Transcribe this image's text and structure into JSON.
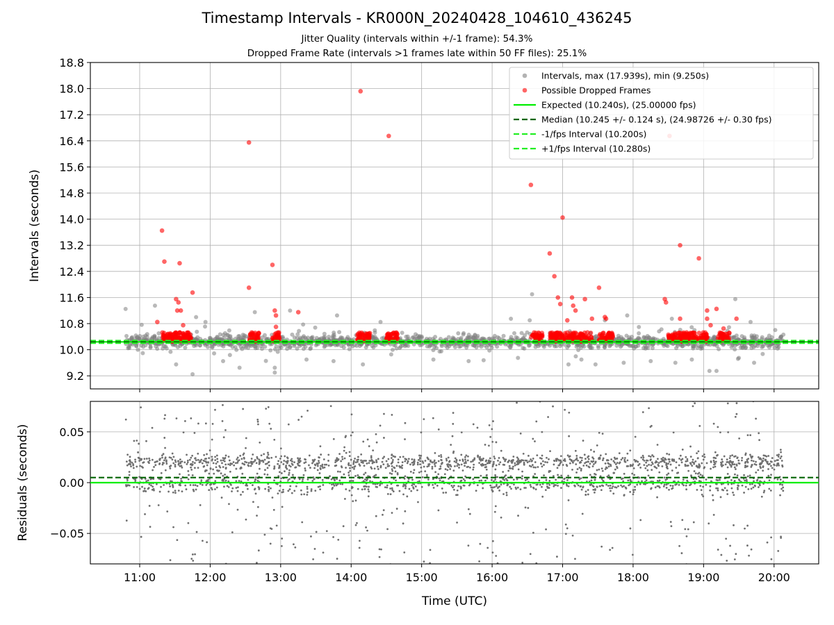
{
  "chart_data": [
    {
      "type": "scatter",
      "title": "Timestamp Intervals - KR000N_20240428_104610_436245",
      "subtitle_lines": [
        "Jitter Quality (intervals within +/-1 frame): 54.3%",
        "Dropped Frame Rate (intervals >1 frames late within 50 FF files): 25.1%"
      ],
      "xlabel": "",
      "ylabel": "Intervals (seconds)",
      "xlim": [
        "10:18",
        "20:38"
      ],
      "ylim": [
        8.8,
        18.8
      ],
      "yticks": [
        9.2,
        10.0,
        10.8,
        11.6,
        12.4,
        13.2,
        14.0,
        14.8,
        15.6,
        16.4,
        17.2,
        18.0,
        18.8
      ],
      "yticks_labels": [
        "9.2",
        "10.0",
        "10.8",
        "11.6",
        "12.4",
        "13.2",
        "14.0",
        "14.8",
        "15.6",
        "16.4",
        "17.2",
        "18.0",
        "18.8"
      ],
      "grid": true,
      "legend_position": "upper-right",
      "series": [
        {
          "name": "Intervals, max (17.939s), min (9.250s)",
          "kind": "scatter",
          "color": "#808080",
          "time_range": [
            "10:48",
            "20:08"
          ],
          "typical_center": 10.25,
          "typical_spread": 0.2,
          "outliers": [
            {
              "x": "10:48",
              "y": 11.25
            },
            {
              "x": "11:13",
              "y": 11.35
            },
            {
              "x": "11:31",
              "y": 9.55
            },
            {
              "x": "11:48",
              "y": 11.0
            },
            {
              "x": "11:45",
              "y": 9.25
            },
            {
              "x": "11:56",
              "y": 10.85
            },
            {
              "x": "12:11",
              "y": 9.65
            },
            {
              "x": "12:25",
              "y": 9.45
            },
            {
              "x": "12:38",
              "y": 11.15
            },
            {
              "x": "12:55",
              "y": 9.3
            },
            {
              "x": "12:55",
              "y": 9.45
            },
            {
              "x": "13:08",
              "y": 11.2
            },
            {
              "x": "13:22",
              "y": 9.7
            },
            {
              "x": "13:48",
              "y": 11.05
            },
            {
              "x": "13:45",
              "y": 9.65
            },
            {
              "x": "14:10",
              "y": 9.55
            },
            {
              "x": "14:25",
              "y": 10.85
            },
            {
              "x": "15:10",
              "y": 9.7
            },
            {
              "x": "15:40",
              "y": 9.65
            },
            {
              "x": "16:16",
              "y": 10.95
            },
            {
              "x": "16:22",
              "y": 9.75
            },
            {
              "x": "16:32",
              "y": 10.9
            },
            {
              "x": "16:34",
              "y": 11.7
            },
            {
              "x": "17:05",
              "y": 9.55
            },
            {
              "x": "17:16",
              "y": 9.7
            },
            {
              "x": "17:28",
              "y": 9.55
            },
            {
              "x": "17:36",
              "y": 10.9
            },
            {
              "x": "17:52",
              "y": 9.6
            },
            {
              "x": "17:55",
              "y": 11.05
            },
            {
              "x": "18:15",
              "y": 9.65
            },
            {
              "x": "18:36",
              "y": 9.6
            },
            {
              "x": "18:33",
              "y": 10.95
            },
            {
              "x": "18:50",
              "y": 9.7
            },
            {
              "x": "19:05",
              "y": 9.35
            },
            {
              "x": "19:11",
              "y": 9.35
            },
            {
              "x": "19:27",
              "y": 11.55
            },
            {
              "x": "19:43",
              "y": 9.6
            },
            {
              "x": "19:30",
              "y": 9.75
            },
            {
              "x": "19:40",
              "y": 10.85
            }
          ]
        },
        {
          "name": "Possible Dropped Frames",
          "kind": "scatter",
          "color": "#ff0000",
          "clusters": [
            {
              "start": "11:19",
              "end": "11:44"
            },
            {
              "start": "12:33",
              "end": "12:42"
            },
            {
              "start": "12:53",
              "end": "13:00"
            },
            {
              "start": "14:05",
              "end": "14:16"
            },
            {
              "start": "14:30",
              "end": "14:40"
            },
            {
              "start": "16:33",
              "end": "16:43"
            },
            {
              "start": "16:49",
              "end": "17:25"
            },
            {
              "start": "17:31",
              "end": "17:43"
            },
            {
              "start": "18:30",
              "end": "18:54"
            },
            {
              "start": "18:56",
              "end": "19:04"
            },
            {
              "start": "19:12",
              "end": "19:22"
            }
          ],
          "outliers": [
            {
              "x": "11:19",
              "y": 13.65
            },
            {
              "x": "11:21",
              "y": 12.7
            },
            {
              "x": "11:34",
              "y": 12.65
            },
            {
              "x": "11:31",
              "y": 11.55
            },
            {
              "x": "11:33",
              "y": 11.45
            },
            {
              "x": "11:32",
              "y": 11.2
            },
            {
              "x": "11:35",
              "y": 11.2
            },
            {
              "x": "11:45",
              "y": 11.75
            },
            {
              "x": "11:15",
              "y": 10.85
            },
            {
              "x": "11:37",
              "y": 10.75
            },
            {
              "x": "12:33",
              "y": 16.35
            },
            {
              "x": "12:33",
              "y": 11.9
            },
            {
              "x": "12:53",
              "y": 12.6
            },
            {
              "x": "12:55",
              "y": 11.2
            },
            {
              "x": "12:56",
              "y": 11.05
            },
            {
              "x": "12:56",
              "y": 10.7
            },
            {
              "x": "13:15",
              "y": 11.15
            },
            {
              "x": "14:08",
              "y": 17.92
            },
            {
              "x": "14:32",
              "y": 16.55
            },
            {
              "x": "16:33",
              "y": 15.05
            },
            {
              "x": "16:49",
              "y": 12.95
            },
            {
              "x": "16:53",
              "y": 12.25
            },
            {
              "x": "16:56",
              "y": 11.6
            },
            {
              "x": "16:58",
              "y": 11.4
            },
            {
              "x": "17:00",
              "y": 14.05
            },
            {
              "x": "17:08",
              "y": 11.6
            },
            {
              "x": "17:09",
              "y": 11.35
            },
            {
              "x": "17:11",
              "y": 11.2
            },
            {
              "x": "17:04",
              "y": 10.9
            },
            {
              "x": "17:19",
              "y": 11.55
            },
            {
              "x": "17:25",
              "y": 10.95
            },
            {
              "x": "17:31",
              "y": 11.9
            },
            {
              "x": "17:36",
              "y": 11.0
            },
            {
              "x": "17:37",
              "y": 10.95
            },
            {
              "x": "18:27",
              "y": 11.55
            },
            {
              "x": "18:28",
              "y": 11.45
            },
            {
              "x": "18:31",
              "y": 16.55
            },
            {
              "x": "18:40",
              "y": 13.2
            },
            {
              "x": "18:40",
              "y": 10.95
            },
            {
              "x": "18:56",
              "y": 12.8
            },
            {
              "x": "19:03",
              "y": 11.2
            },
            {
              "x": "19:03",
              "y": 10.95
            },
            {
              "x": "19:06",
              "y": 10.75
            },
            {
              "x": "19:11",
              "y": 11.25
            },
            {
              "x": "19:28",
              "y": 10.95
            },
            {
              "x": "19:17",
              "y": 10.65
            }
          ]
        },
        {
          "name": "Expected (10.240s), (25.00000 fps)",
          "kind": "hline",
          "y": 10.24,
          "color": "#00ee00",
          "style": "solid"
        },
        {
          "name": "Median (10.245 +/- 0.124 s), (24.98726 +/- 0.30 fps)",
          "kind": "hline",
          "y": 10.245,
          "color": "#006400",
          "style": "dashed"
        },
        {
          "name": "-1/fps Interval (10.200s)",
          "kind": "hline",
          "y": 10.2,
          "color": "#22ee22",
          "style": "dashed"
        },
        {
          "name": "+1/fps Interval (10.280s)",
          "kind": "hline",
          "y": 10.28,
          "color": "#22ee22",
          "style": "dashed"
        }
      ]
    },
    {
      "type": "scatter",
      "title": "",
      "xlabel": "Time (UTC)",
      "ylabel": "Residuals (seconds)",
      "xlim": [
        "10:18",
        "20:38"
      ],
      "ylim": [
        -0.08,
        0.08
      ],
      "xticks_labels": [
        "11:00",
        "12:00",
        "13:00",
        "14:00",
        "15:00",
        "16:00",
        "17:00",
        "18:00",
        "19:00",
        "20:00"
      ],
      "yticks": [
        -0.05,
        0.0,
        0.05
      ],
      "yticks_labels": [
        "−0.05",
        "0.00",
        "0.05"
      ],
      "grid": true,
      "series": [
        {
          "name": "",
          "kind": "scatter",
          "color": "#707070",
          "time_range": [
            "10:48",
            "20:08"
          ],
          "typical_center": 0.01,
          "typical_spread": 0.03
        },
        {
          "name": "",
          "kind": "hline",
          "y": 0.0,
          "color": "#00ee00",
          "style": "solid"
        },
        {
          "name": "",
          "kind": "hline",
          "y": 0.005,
          "color": "#006400",
          "style": "dashed"
        }
      ]
    }
  ]
}
